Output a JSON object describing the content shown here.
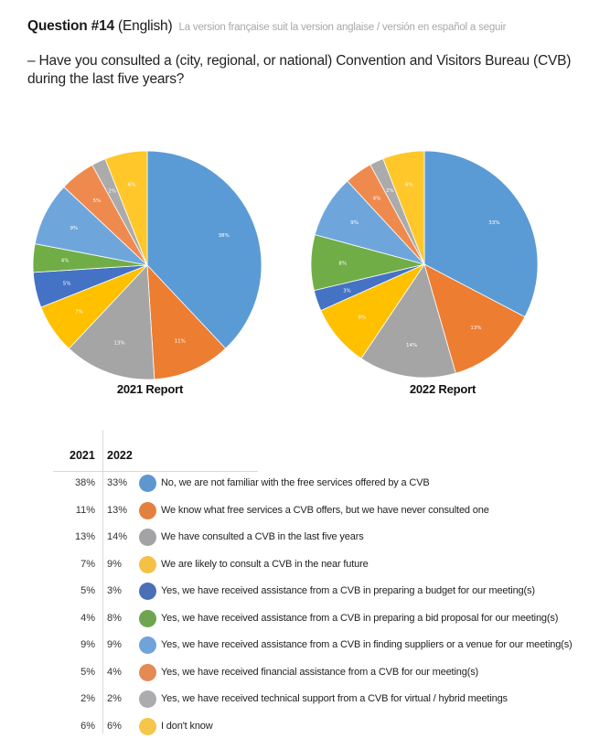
{
  "header": {
    "question_number": "Question #14",
    "language": "(English)",
    "translation_note": "La version française suit la version anglaise / versión en español a seguir",
    "question_text": "– Have you consulted a (city, regional, or national) Convention and Visitors Bureau (CVB) during the last five years?"
  },
  "table": {
    "col_2021": "2021",
    "col_2022": "2022"
  },
  "chart_data": [
    {
      "type": "pie",
      "title": "2021 Report",
      "start": "12 o'clock, clockwise",
      "categories": [
        "No, we are not familiar with the free services offered by a CVB",
        "We know what free services a CVB offers, but we have never consulted one",
        "We have consulted a CVB in the last five years",
        "We are likely to consult a CVB in the near future",
        "Yes, we have received assistance from a CVB in preparing a budget for our meeting(s)",
        "Yes, we have received assistance from a CVB in preparing a bid proposal for our meeting(s)",
        "Yes, we have received assistance from a CVB in finding suppliers or a venue for our meeting(s)",
        "Yes, we have received financial assistance from a CVB for our meeting(s)",
        "Yes, we have received technical support from a CVB for virtual / hybrid meetings",
        "I don't know"
      ],
      "values": [
        38,
        11,
        13,
        7,
        5,
        4,
        9,
        5,
        2,
        6
      ],
      "labels": [
        "38%",
        "11%",
        "13%",
        "7%",
        "5%",
        "4%",
        "9%",
        "5%",
        "2%",
        "6%"
      ],
      "colors": [
        "#5b9bd5",
        "#ed7d31",
        "#a5a5a5",
        "#ffc000",
        "#4472c4",
        "#70ad47",
        "#6ea6dc",
        "#ef8a4f",
        "#ababab",
        "#ffc72a"
      ]
    },
    {
      "type": "pie",
      "title": "2022 Report",
      "start": "12 o'clock, clockwise",
      "categories": [
        "No, we are not familiar with the free services offered by a CVB",
        "We know what free services a CVB offers, but we have never consulted one",
        "We have consulted a CVB in the last five years",
        "We are likely to consult a CVB in the near future",
        "Yes, we have received assistance from a CVB in preparing a budget for our meeting(s)",
        "Yes, we have received assistance from a CVB in preparing a bid proposal for our meeting(s)",
        "Yes, we have received assistance from a CVB in finding suppliers or a venue for our meeting(s)",
        "Yes, we have received financial assistance from a CVB for our meeting(s)",
        "Yes, we have received technical support from a CVB for virtual / hybrid meetings",
        "I don't know"
      ],
      "values": [
        33,
        13,
        14,
        9,
        3,
        8,
        9,
        4,
        2,
        6
      ],
      "labels": [
        "33%",
        "13%",
        "14%",
        "9%",
        "3%",
        "8%",
        "9%",
        "4%",
        "2%",
        "6%"
      ],
      "colors": [
        "#5b9bd5",
        "#ed7d31",
        "#a5a5a5",
        "#ffc000",
        "#4472c4",
        "#70ad47",
        "#6ea6dc",
        "#ef8a4f",
        "#ababab",
        "#ffc72a"
      ]
    }
  ],
  "legend": [
    {
      "v2021": "38%",
      "v2022": "33%",
      "color": "#5e97d0",
      "label": "No, we are not familiar with the free services offered by a CVB"
    },
    {
      "v2021": "11%",
      "v2022": "13%",
      "color": "#e2813f",
      "label": "We know what free services a CVB offers, but we have never consulted one"
    },
    {
      "v2021": "13%",
      "v2022": "14%",
      "color": "#a3a3a5",
      "label": "We have consulted a CVB in the last five years"
    },
    {
      "v2021": "7%",
      "v2022": "9%",
      "color": "#f3c245",
      "label": "We are likely to consult a CVB in the near future"
    },
    {
      "v2021": "5%",
      "v2022": "3%",
      "color": "#4a6fb5",
      "label": "Yes, we have received assistance from a CVB in preparing a budget for our meeting(s)"
    },
    {
      "v2021": "4%",
      "v2022": "8%",
      "color": "#6fa551",
      "label": "Yes, we have received assistance from a CVB in preparing a bid proposal for our meeting(s)"
    },
    {
      "v2021": "9%",
      "v2022": "9%",
      "color": "#6fa3da",
      "label": "Yes, we have received assistance from a CVB in finding suppliers or a venue for our meeting(s)"
    },
    {
      "v2021": "5%",
      "v2022": "4%",
      "color": "#e58a55",
      "label": "Yes, we have received financial assistance from a CVB for our meeting(s)"
    },
    {
      "v2021": "2%",
      "v2022": "2%",
      "color": "#acacae",
      "label": "Yes, we have received technical support from a CVB for virtual / hybrid meetings"
    },
    {
      "v2021": "6%",
      "v2022": "6%",
      "color": "#f5c64a",
      "label": "I don't know"
    }
  ]
}
